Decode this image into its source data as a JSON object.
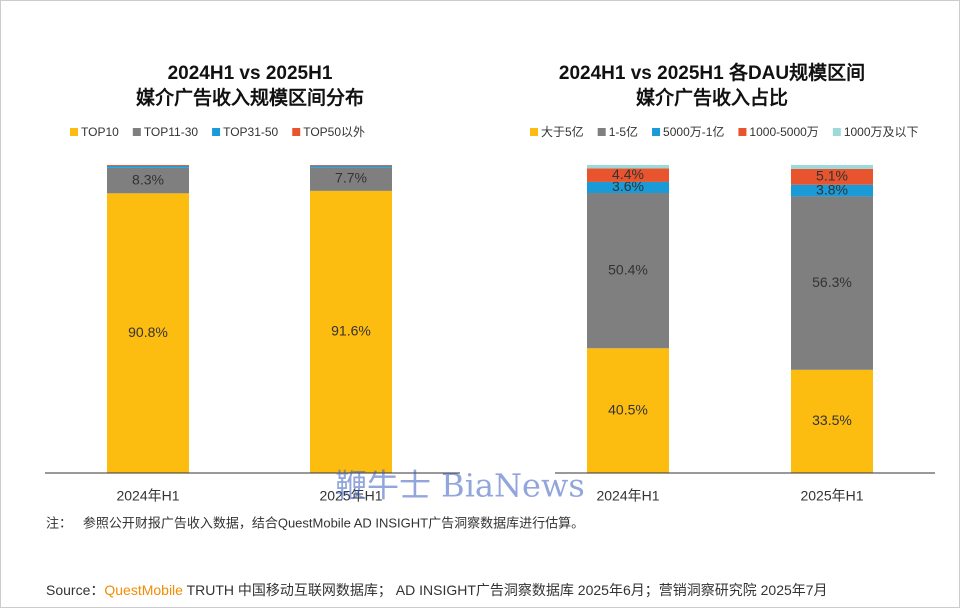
{
  "chart_data": [
    {
      "type": "stacked-bar",
      "title": [
        "2024H1 vs 2025H1",
        "媒介广告收入规模区间分布"
      ],
      "categories": [
        "2024年H1",
        "2025年H1"
      ],
      "ylim": [
        0,
        100
      ],
      "series": [
        {
          "name": "TOP10",
          "color": "#FDBD10",
          "values": [
            90.8,
            91.6
          ],
          "value_labels": [
            "90.8%",
            "91.6%"
          ]
        },
        {
          "name": "TOP11-30",
          "color": "#7F7F7F",
          "values": [
            8.3,
            7.7
          ],
          "value_labels": [
            "8.3%",
            "7.7%"
          ]
        },
        {
          "name": "TOP31-50",
          "color": "#1A9AD6",
          "values": [
            0.6,
            0.5
          ]
        },
        {
          "name": "TOP50以外",
          "color": "#E8542E",
          "values": [
            0.3,
            0.2
          ]
        }
      ]
    },
    {
      "type": "stacked-bar",
      "title": [
        "2024H1 vs 2025H1 各DAU规模区间",
        "媒介广告收入占比"
      ],
      "categories": [
        "2024年H1",
        "2025年H1"
      ],
      "ylim": [
        0,
        100
      ],
      "series": [
        {
          "name": "大于5亿",
          "color": "#FDBD10",
          "values": [
            40.5,
            33.5
          ],
          "value_labels": [
            "40.5%",
            "33.5%"
          ]
        },
        {
          "name": "1-5亿",
          "color": "#7F7F7F",
          "values": [
            50.4,
            56.3
          ],
          "value_labels": [
            "50.4%",
            "56.3%"
          ]
        },
        {
          "name": "5000万-1亿",
          "color": "#1A9AD6",
          "values": [
            3.6,
            3.8
          ],
          "value_labels": [
            "3.6%",
            "3.8%"
          ]
        },
        {
          "name": "1000-5000万",
          "color": "#E8542E",
          "values": [
            4.4,
            5.1
          ],
          "value_labels": [
            "4.4%",
            "5.1%"
          ]
        },
        {
          "name": "1000万及以下",
          "color": "#9DD9D9",
          "values": [
            1.1,
            1.3
          ]
        }
      ]
    }
  ],
  "note": "注：   参照公开财报广告收入数据，结合QuestMobile AD INSIGHT广告洞察数据库进行估算。",
  "source": {
    "label": "Source：",
    "brand": "QuestMobile",
    "text": " TRUTH 中国移动互联网数据库； AD INSIGHT广告洞察数据库 2025年6月；营销洞察研究院 2025年7月"
  },
  "watermark": "鞭牛士 BiaNews"
}
